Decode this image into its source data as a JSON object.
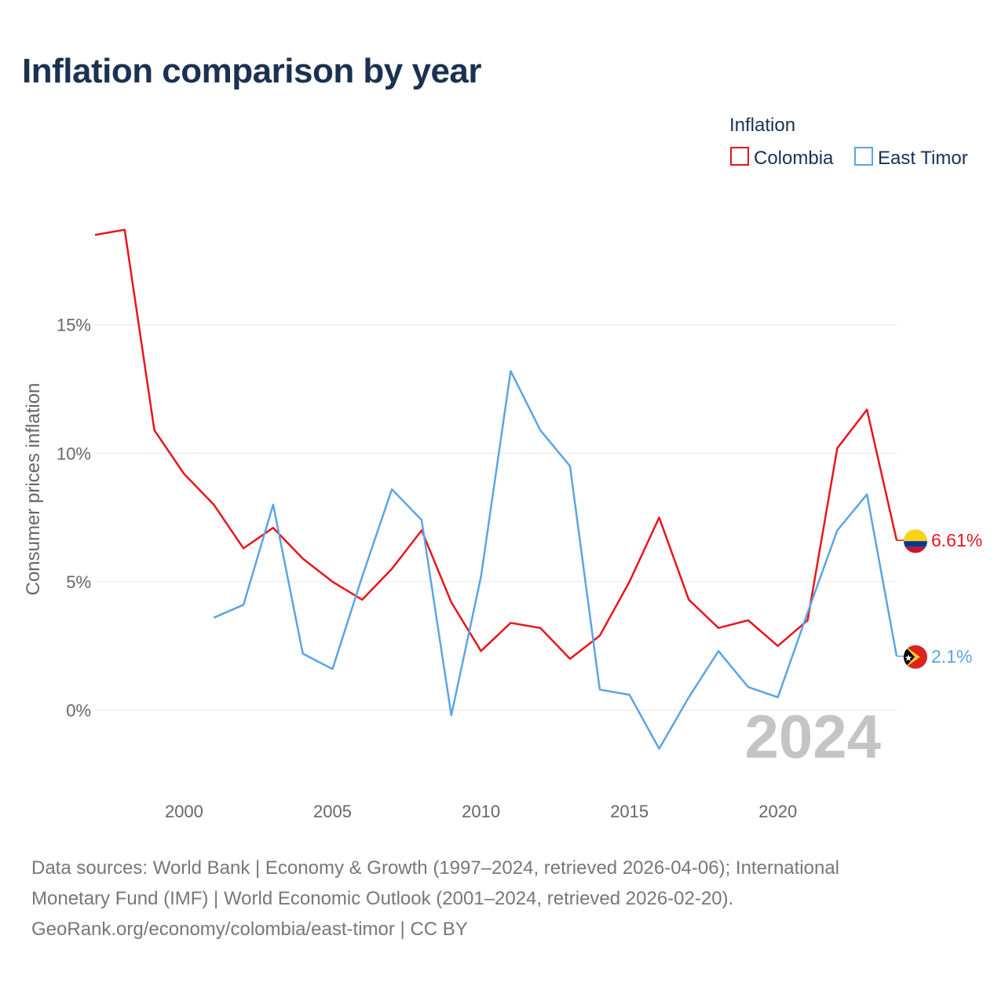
{
  "title": "Inflation comparison by year",
  "footer": {
    "line1": "Data sources: World Bank | Economy & Growth (1997–2024, retrieved 2026-04-06); International",
    "line2": "Monetary Fund (IMF) | World Economic Outlook (2001–2024, retrieved 2026-02-20).",
    "line3": "GeoRank.org/economy/colombia/east-timor | CC BY"
  },
  "chart_data": {
    "type": "line",
    "title": "Inflation comparison by year",
    "ylabel": "Consumer prices inflation",
    "xlabel": "",
    "legend_title": "Inflation",
    "legend_position": "top-right",
    "watermark_year": "2024",
    "xlim": [
      1997,
      2024
    ],
    "ylim": [
      -3.2,
      19.5
    ],
    "x_ticks": [
      2000,
      2005,
      2010,
      2015,
      2020
    ],
    "y_ticks": [
      0,
      5,
      10,
      15
    ],
    "y_tick_labels": [
      "0%",
      "5%",
      "10%",
      "15%"
    ],
    "grid": true,
    "series": [
      {
        "name": "Colombia",
        "color": "#e8151b",
        "flag": "colombia-flag",
        "end_label": "6.61%",
        "x": [
          1997,
          1998,
          1999,
          2000,
          2001,
          2002,
          2003,
          2004,
          2005,
          2006,
          2007,
          2008,
          2009,
          2010,
          2011,
          2012,
          2013,
          2014,
          2015,
          2016,
          2017,
          2018,
          2019,
          2020,
          2021,
          2022,
          2023,
          2024
        ],
        "values": [
          18.5,
          18.7,
          10.9,
          9.2,
          8.0,
          6.3,
          7.1,
          5.9,
          5.0,
          4.3,
          5.5,
          7.0,
          4.2,
          2.3,
          3.4,
          3.2,
          2.0,
          2.9,
          5.0,
          7.5,
          4.3,
          3.2,
          3.5,
          2.5,
          3.5,
          10.2,
          11.7,
          6.61
        ]
      },
      {
        "name": "East Timor",
        "color": "#5ba4e6",
        "flag": "east-timor-flag",
        "end_label": "2.1%",
        "x": [
          2001,
          2002,
          2003,
          2004,
          2005,
          2006,
          2007,
          2008,
          2009,
          2010,
          2011,
          2012,
          2013,
          2014,
          2015,
          2016,
          2017,
          2018,
          2019,
          2020,
          2021,
          2022,
          2023,
          2024
        ],
        "values": [
          3.6,
          4.1,
          8.0,
          2.2,
          1.6,
          5.2,
          8.6,
          7.4,
          -0.2,
          5.2,
          13.2,
          10.9,
          9.5,
          0.8,
          0.6,
          -1.5,
          0.5,
          2.3,
          0.9,
          0.5,
          3.8,
          7.0,
          8.4,
          2.1
        ]
      }
    ]
  }
}
